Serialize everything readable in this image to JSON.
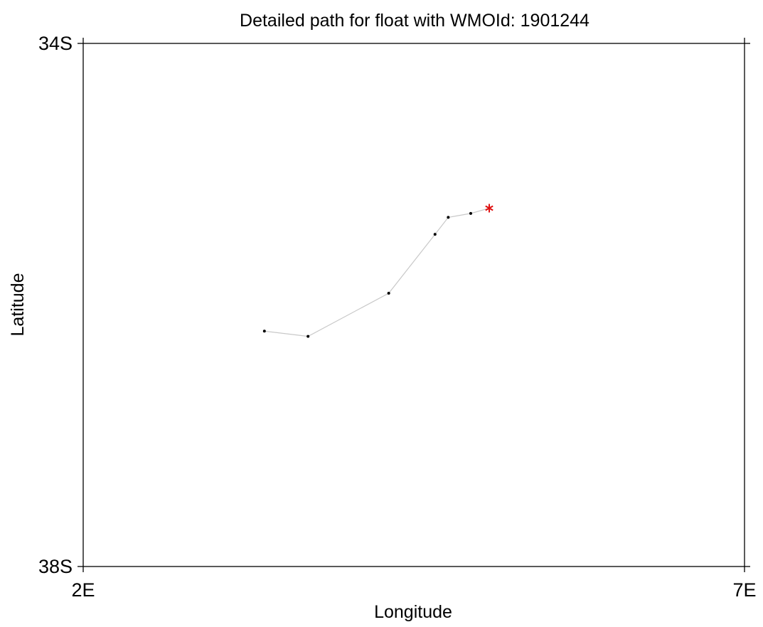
{
  "chart_data": {
    "type": "line",
    "title": "Detailed path for float with WMOId: 1901244",
    "xlabel": "Longitude",
    "ylabel": "Latitude",
    "xlim": [
      2,
      7
    ],
    "ylim": [
      -38,
      -34
    ],
    "x_ticks": [
      {
        "value": 2,
        "label": "2E"
      },
      {
        "value": 7,
        "label": "7E"
      }
    ],
    "y_ticks": [
      {
        "value": -34,
        "label": "34S"
      },
      {
        "value": -38,
        "label": "38S"
      }
    ],
    "grid": false,
    "series": [
      {
        "x": [
          3.37,
          3.7,
          4.31,
          4.66,
          4.76,
          4.93,
          5.07
        ],
        "y": [
          -36.2,
          -36.24,
          -35.91,
          -35.46,
          -35.33,
          -35.3,
          -35.26
        ],
        "line_color": "#c8c8c8",
        "marker_color": "#000000"
      }
    ],
    "last_position": {
      "x": 5.07,
      "y": -35.26,
      "marker": "asterisk",
      "color": "#e01010"
    }
  }
}
